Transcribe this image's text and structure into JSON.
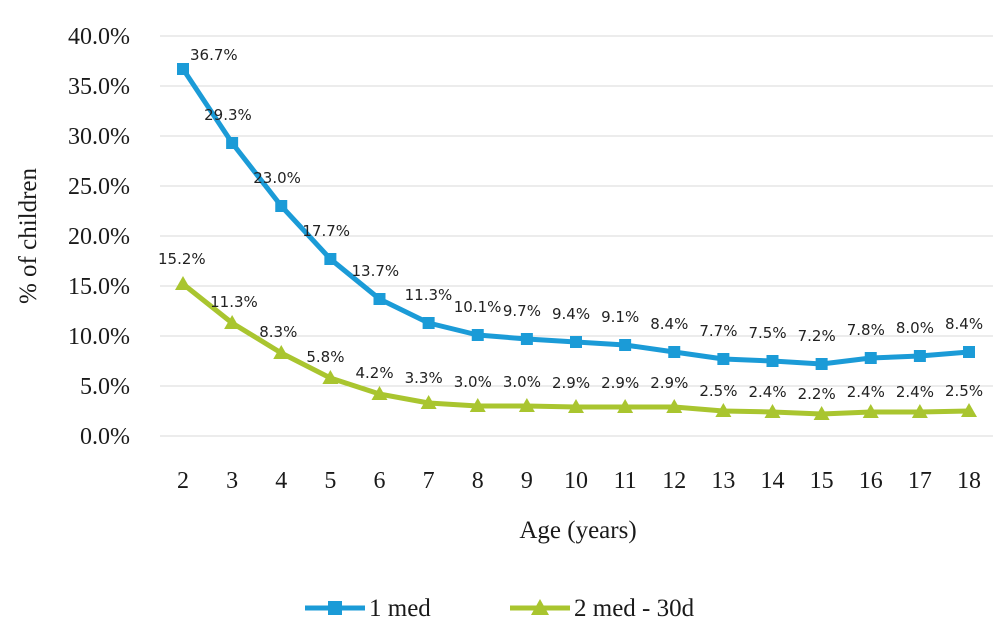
{
  "chart_data": {
    "type": "line",
    "xlabel": "Age (years)",
    "ylabel": "% of children",
    "x": [
      2,
      3,
      4,
      5,
      6,
      7,
      8,
      9,
      10,
      11,
      12,
      13,
      14,
      15,
      16,
      17,
      18
    ],
    "ylim": [
      0,
      40
    ],
    "yticks": [
      "0.0%",
      "5.0%",
      "10.0%",
      "15.0%",
      "20.0%",
      "25.0%",
      "30.0%",
      "35.0%",
      "40.0%"
    ],
    "grid": true,
    "legend_position": "bottom",
    "series": [
      {
        "name": "1 med",
        "color": "#1B9BD7",
        "marker": "square",
        "values": [
          36.7,
          29.3,
          23.0,
          17.7,
          13.7,
          11.3,
          10.1,
          9.7,
          9.4,
          9.1,
          8.4,
          7.7,
          7.5,
          7.2,
          7.8,
          8.0,
          8.4
        ],
        "labels": [
          "36.7%",
          "29.3%",
          "23.0%",
          "17.7%",
          "13.7%",
          "11.3%",
          "10.1%",
          "9.7%",
          "9.4%",
          "9.1%",
          "8.4%",
          "7.7%",
          "7.5%",
          "7.2%",
          "7.8%",
          "8.0%",
          "8.4%"
        ]
      },
      {
        "name": "2 med - 30d",
        "color": "#A9C52F",
        "marker": "triangle",
        "values": [
          15.2,
          11.3,
          8.3,
          5.8,
          4.2,
          3.3,
          3.0,
          3.0,
          2.9,
          2.9,
          2.9,
          2.5,
          2.4,
          2.2,
          2.4,
          2.4,
          2.5
        ],
        "labels": [
          "15.2%",
          "11.3%",
          "8.3%",
          "5.8%",
          "4.2%",
          "3.3%",
          "3.0%",
          "3.0%",
          "2.9%",
          "2.9%",
          "2.9%",
          "2.5%",
          "2.4%",
          "2.2%",
          "2.4%",
          "2.4%",
          "2.5%"
        ]
      }
    ]
  }
}
